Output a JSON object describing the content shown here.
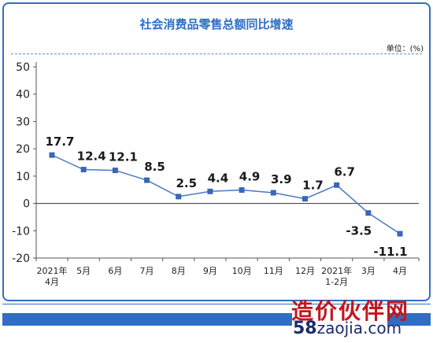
{
  "chart_data": {
    "type": "line",
    "title": "社会消费品零售总额同比增速",
    "unit_label": "单位：(%)",
    "categories": [
      [
        "2021年",
        "4月"
      ],
      [
        "5月"
      ],
      [
        "6月"
      ],
      [
        "7月"
      ],
      [
        "8月"
      ],
      [
        "9月"
      ],
      [
        "10月"
      ],
      [
        "11月"
      ],
      [
        "12月"
      ],
      [
        "2021年",
        "1-2月"
      ],
      [
        "3月"
      ],
      [
        "4月"
      ]
    ],
    "values": [
      17.7,
      12.4,
      12.1,
      8.5,
      2.5,
      4.4,
      4.9,
      3.9,
      1.7,
      6.7,
      -3.5,
      -11.1
    ],
    "value_labels": [
      "17.7",
      "12.4",
      "12.1",
      "8.5",
      "2.5",
      "4.4",
      "4.9",
      "3.9",
      "1.7",
      "6.7",
      "-3.5",
      "-11.1"
    ],
    "ylim": [
      -20,
      50
    ],
    "yticks": [
      50,
      40,
      30,
      20,
      10,
      0,
      -10,
      -20
    ],
    "grid": false,
    "colors": {
      "line": "#4a78c2",
      "marker": "#3a66b5",
      "title": "#2f6fc3"
    }
  },
  "watermark": {
    "line1": "造价伙伴网",
    "line2_big": "58",
    "line2_rest": "zaojia.com"
  }
}
